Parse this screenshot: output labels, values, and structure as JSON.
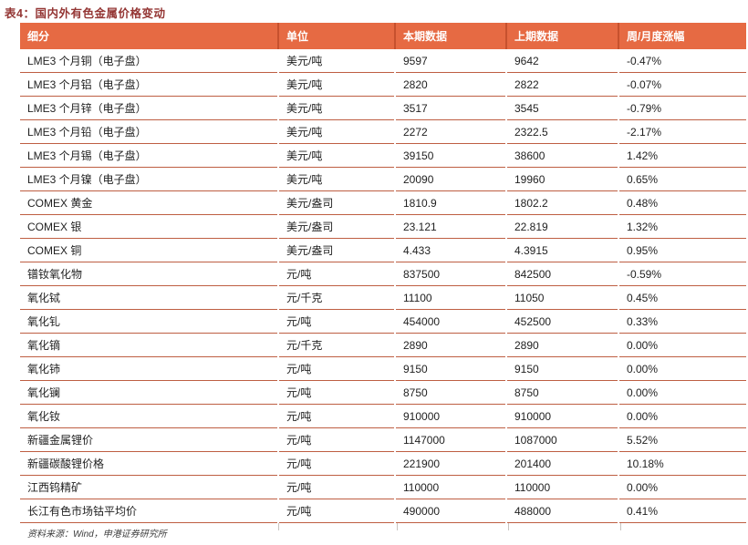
{
  "title": "表4：国内外有色金属价格变动",
  "colors": {
    "title": "#943634",
    "header_bg": "#E66A43",
    "header_separator": "#C6512E",
    "row_border": "#BE5E42",
    "body_text": "#1F1F1F"
  },
  "table": {
    "columns": [
      "细分",
      "单位",
      "本期数据",
      "上期数据",
      "周/月度涨幅"
    ],
    "rows": [
      {
        "name": "LME3 个月铜（电子盘）",
        "unit": "美元/吨",
        "current": "9597",
        "previous": "9642",
        "change": "-0.47%"
      },
      {
        "name": "LME3 个月铝（电子盘）",
        "unit": "美元/吨",
        "current": "2820",
        "previous": "2822",
        "change": "-0.07%"
      },
      {
        "name": "LME3 个月锌（电子盘）",
        "unit": "美元/吨",
        "current": "3517",
        "previous": "3545",
        "change": "-0.79%"
      },
      {
        "name": "LME3 个月铅（电子盘）",
        "unit": "美元/吨",
        "current": "2272",
        "previous": "2322.5",
        "change": "-2.17%"
      },
      {
        "name": "LME3 个月锡（电子盘）",
        "unit": "美元/吨",
        "current": "39150",
        "previous": "38600",
        "change": "1.42%"
      },
      {
        "name": "LME3 个月镍（电子盘）",
        "unit": "美元/吨",
        "current": "20090",
        "previous": "19960",
        "change": "0.65%"
      },
      {
        "name": "COMEX 黄金",
        "unit": "美元/盎司",
        "current": "1810.9",
        "previous": "1802.2",
        "change": "0.48%"
      },
      {
        "name": "COMEX 银",
        "unit": "美元/盎司",
        "current": "23.121",
        "previous": "22.819",
        "change": "1.32%"
      },
      {
        "name": "COMEX 铜",
        "unit": "美元/盎司",
        "current": "4.433",
        "previous": "4.3915",
        "change": "0.95%"
      },
      {
        "name": "镨钕氧化物",
        "unit": "元/吨",
        "current": "837500",
        "previous": "842500",
        "change": "-0.59%"
      },
      {
        "name": "氧化铽",
        "unit": "元/千克",
        "current": "11100",
        "previous": "11050",
        "change": "0.45%"
      },
      {
        "name": "氧化钆",
        "unit": "元/吨",
        "current": "454000",
        "previous": "452500",
        "change": "0.33%"
      },
      {
        "name": "氧化镝",
        "unit": "元/千克",
        "current": "2890",
        "previous": "2890",
        "change": "0.00%"
      },
      {
        "name": "氧化铈",
        "unit": "元/吨",
        "current": "9150",
        "previous": "9150",
        "change": "0.00%"
      },
      {
        "name": "氧化镧",
        "unit": "元/吨",
        "current": "8750",
        "previous": "8750",
        "change": "0.00%"
      },
      {
        "name": "氧化钕",
        "unit": "元/吨",
        "current": "910000",
        "previous": "910000",
        "change": "0.00%"
      },
      {
        "name": "新疆金属锂价",
        "unit": "元/吨",
        "current": "1147000",
        "previous": "1087000",
        "change": "5.52%"
      },
      {
        "name": "新疆碳酸锂价格",
        "unit": "元/吨",
        "current": "221900",
        "previous": "201400",
        "change": "10.18%"
      },
      {
        "name": "江西钨精矿",
        "unit": "元/吨",
        "current": "110000",
        "previous": "110000",
        "change": "0.00%"
      },
      {
        "name": "长江有色市场钴平均价",
        "unit": "元/吨",
        "current": "490000",
        "previous": "488000",
        "change": "0.41%"
      }
    ]
  },
  "footer": {
    "source": "资料来源：Wind，申港证券研究所"
  }
}
